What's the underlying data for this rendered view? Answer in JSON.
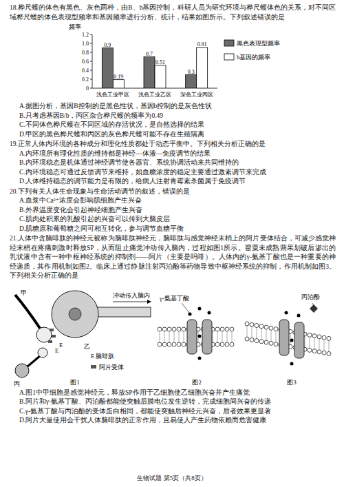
{
  "chart_data": {
    "type": "bar",
    "y_label": "频率",
    "categories": [
      "浅色工业甲区",
      "浅色工业乙区",
      "深色工业丙区"
    ],
    "series": [
      {
        "name": "黑色表现型频率",
        "color": "#6a6a6a",
        "values": [
          0.9,
          0.7,
          0.3
        ]
      },
      {
        "name": "b基因的频率",
        "color": "#ffffff",
        "values": [
          0.19,
          0.51,
          0.91
        ]
      }
    ],
    "ylim": [
      0,
      1.2
    ],
    "yticks": [
      0,
      0.2,
      0.4,
      0.6,
      0.8,
      {
        "value": 1.0,
        "label": "1.0"
      },
      1.2
    ],
    "data_labels": true,
    "legend": "right"
  },
  "questions": [
    {
      "stem": "18.桦尺蠖的体色有黑色、灰色两种，由B、b基因控制，科研人员为研究环境与桦尺蠖体色的关系，对不同区域桦尺蠖的体色表现型频率和基因频率进行分析、统计，结果如图所示。下列叙述错误的是",
      "options": [
        "A.据图分析，基因B控制的是黑色性状，基因b控制的是灰色性状",
        "B.只考虑基因B/b，丙区杂合桦尺蠖的频率为0.49",
        "C.不同体色桦尺蠖在不同区域的存活状况，是自然选择的结果",
        "D.甲区的黑色桦尺蠖和丙区的灰色桦尺蠖可能不存在生殖隔离"
      ]
    },
    {
      "stem": "19.正常人体内环境的各种成分和理化性质都处于动态平衡中。下列相关分析正确的是",
      "options": [
        "A.内环境所有理化性质的维持都是神经—体液—免疫调节的结果",
        "B.内环境稳态是机体通过神经调节使各器官、系统协调活动来共同维持的",
        "C.内环境稳态可通过反馈调节来维持，如血糖浓度的稳定主要通过激素调节来完成",
        "D.人体维持稳态的调节能力是有限的，给病人注射青霉素杀菌属于免疫调节"
      ]
    },
    {
      "stem": "20.下列有关人体生命现象与生命活动调节的叙述，错误的是",
      "options": [
        "A.血浆中Ca²⁺浓度会影响肌细胞产生兴奋",
        "B.外界温度变化会引起神经细胞产生兴奋",
        "C.肌肉处积累的乳酸引起的兴奋可以传到大脑皮层",
        "D.肌糖原和葡萄糖之间可相互转化，参与调节血糖平衡"
      ]
    },
    {
      "stem": "21.人体中含脑啡肽的神经元被称为脑啡肽神经元，脑啡肽与感觉神经末梢上的阿片受体结合，可减少感觉神经末梢在疼痛刺激时释放SP，从而阻止痛觉冲动传入脑内，过程如图1所示。罂粟未成熟蒴果划破后渗出的乳状液中含有一种中枢神经系统的抑制剂——阿片（主要是吗啡）。人体内的γ-氨基丁酸也是一种重要的神经递质，其作用机制如图2。临床上通过静脉注射丙泊酚等药物导致中枢神经系统的抑制，作用机制如图3。下列相关分析正确的是",
      "figures": [
        {
          "caption": "图1",
          "labels": [
            "甲",
            "乙",
            "丙",
            "冲动传入脑内",
            "E",
            "E",
            "E 脑啡肽",
            "阿片受体"
          ]
        },
        {
          "caption": "图2",
          "labels": [
            "γ-氨基丁酸"
          ]
        },
        {
          "caption": "图3",
          "labels": [
            "丙泊酚"
          ]
        }
      ],
      "options": [
        "A.图1中甲细胞是感觉神经元，释放SP作用于乙细胞使乙细胞兴奋并产生痛觉",
        "B.阿片和γ-氨基丁酸、丙泊酚都能使突触后膜电位发生逆转，完成细胞间兴奋的传递",
        "C.γ-氨基丁酸与丙泊酚的受体蛋白相同，都能使突触后神经元兴奋，后者效果更显著",
        "D.阿片大量使用会干扰人体脑啡肽的正常作用，且易使人产生药物依赖而危害健康"
      ]
    }
  ],
  "footer": "生物试题 第5页（共8页）"
}
